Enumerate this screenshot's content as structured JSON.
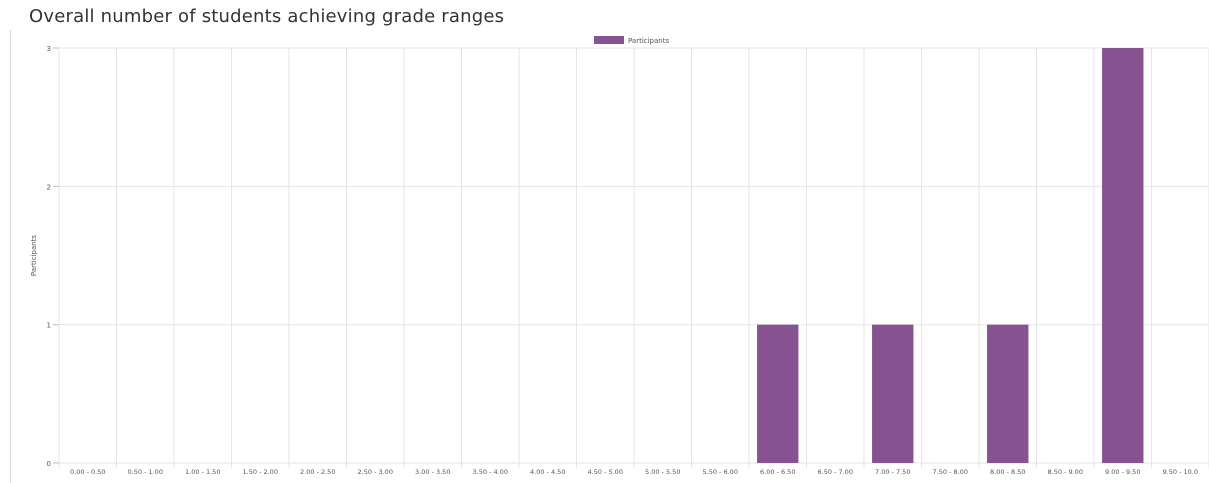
{
  "section": {
    "title": "Overall number of students achieving grade ranges"
  },
  "colors": {
    "bar": "#86528f",
    "grid": "#e6e6e6",
    "axis_text": "#555555"
  },
  "chart_data": {
    "type": "bar",
    "categories": [
      "0.00 - 0.50",
      "0.50 - 1.00",
      "1.00 - 1.50",
      "1.50 - 2.00",
      "2.00 - 2.50",
      "2.50 - 3.00",
      "3.00 - 3.50",
      "3.50 - 4.00",
      "4.00 - 4.50",
      "4.50 - 5.00",
      "5.00 - 5.50",
      "5.50 - 6.00",
      "6.00 - 6.50",
      "6.50 - 7.00",
      "7.00 - 7.50",
      "7.50 - 8.00",
      "8.00 - 8.50",
      "8.50 - 9.00",
      "9.00 - 9.50",
      "9.50 - 10.0"
    ],
    "series": [
      {
        "name": "Participants",
        "values": [
          0,
          0,
          0,
          0,
          0,
          0,
          0,
          0,
          0,
          0,
          0,
          0,
          1,
          0,
          1,
          0,
          1,
          0,
          3,
          0
        ]
      }
    ],
    "ylabel": "Participants",
    "ylim": [
      0,
      3
    ],
    "yticks": [
      0,
      1,
      2,
      3
    ],
    "grid": true,
    "legend": "top-center"
  }
}
